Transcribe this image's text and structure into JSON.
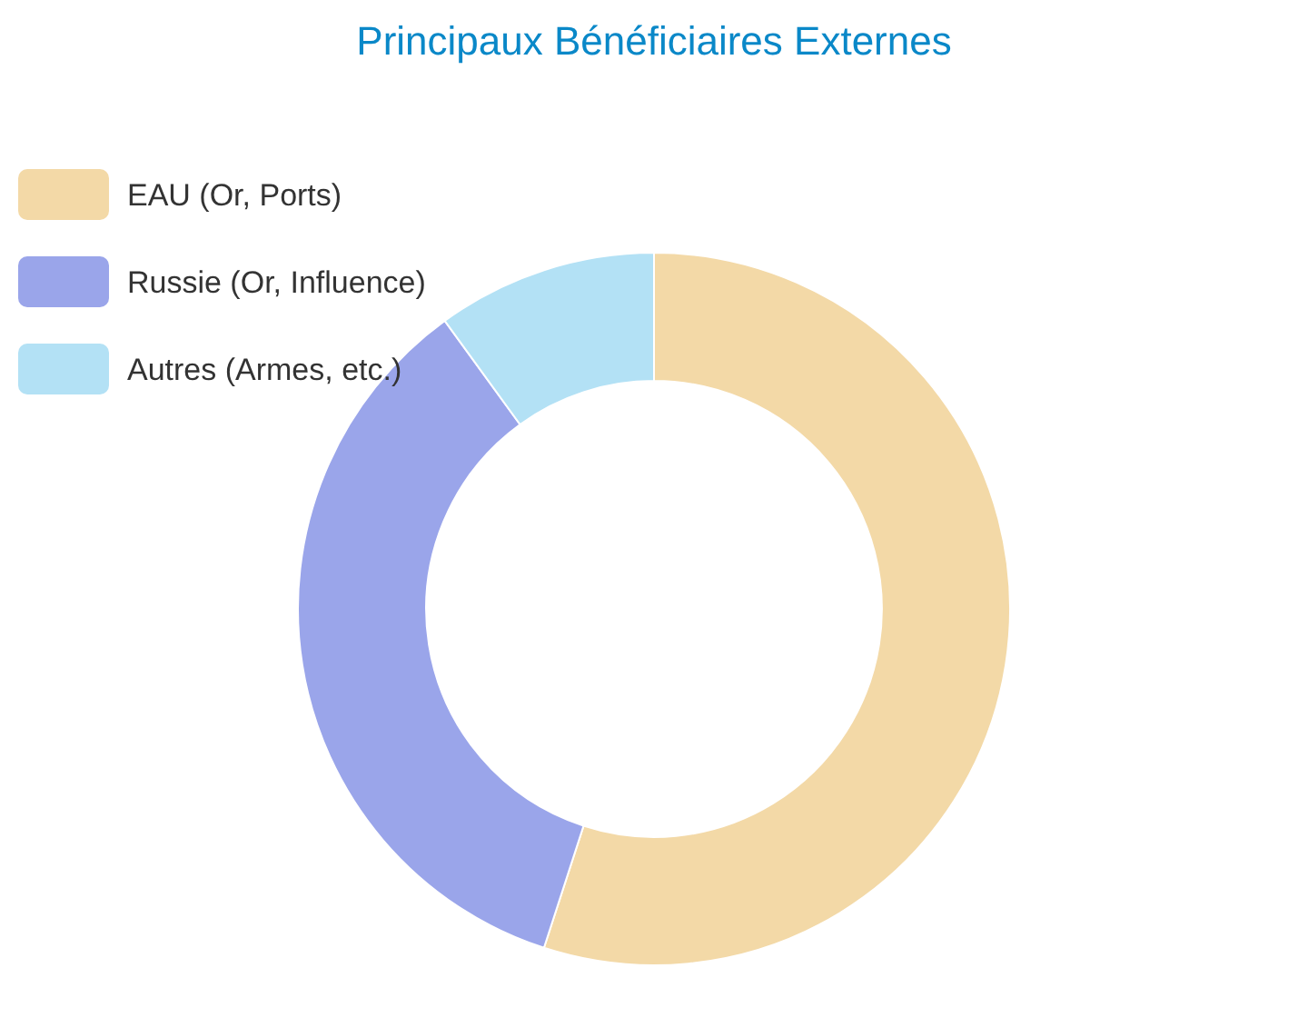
{
  "chart_data": {
    "type": "donut",
    "title": "Principaux Bénéficiaires Externes",
    "categories": [
      "EAU (Or, Ports)",
      "Russie (Or, Influence)",
      "Autres (Armes, etc.)"
    ],
    "values": [
      55,
      35,
      10
    ],
    "colors": [
      "#f3d9a7",
      "#9aa5ea",
      "#b3e1f5"
    ],
    "legend": "top left"
  }
}
